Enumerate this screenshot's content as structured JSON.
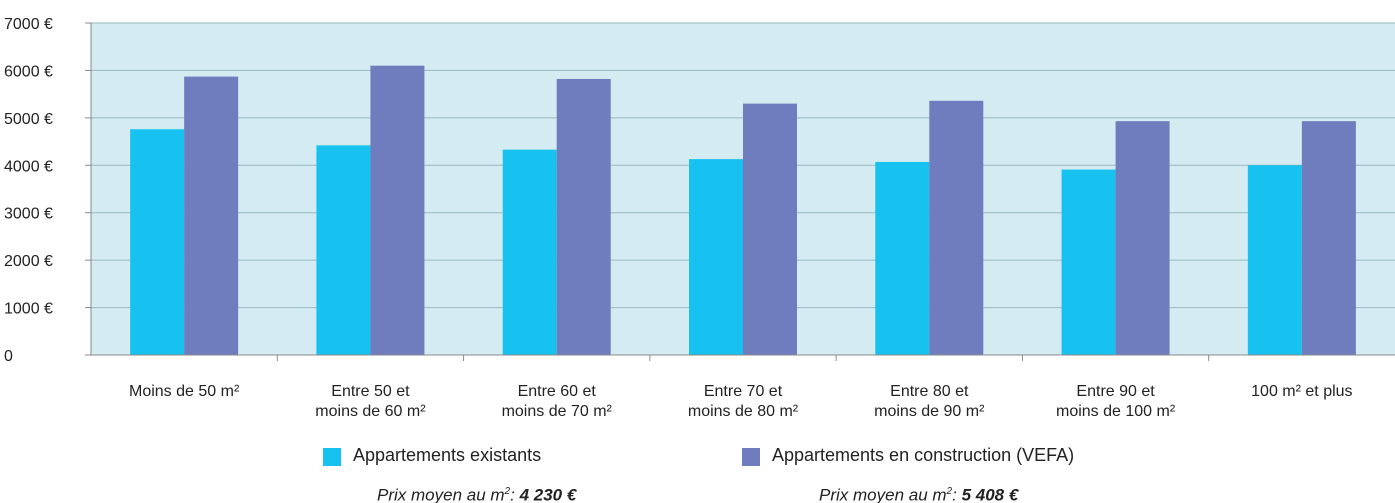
{
  "chart_data": {
    "type": "bar",
    "categories": [
      [
        "Moins de 50 m²"
      ],
      [
        "Entre 50 et",
        "moins de 60 m²"
      ],
      [
        "Entre 60 et",
        "moins de 70 m²"
      ],
      [
        "Entre 70 et",
        "moins de 80 m²"
      ],
      [
        "Entre 80 et",
        "moins de 90 m²"
      ],
      [
        "Entre 90 et",
        "moins de 100 m²"
      ],
      [
        "100 m² et plus"
      ]
    ],
    "series": [
      {
        "name": "Appartements existants",
        "color": "#17c1f0",
        "values": [
          4760,
          4420,
          4330,
          4130,
          4070,
          3910,
          4000
        ]
      },
      {
        "name": "Appartements en construction (VEFA)",
        "color": "#6f7dbf",
        "values": [
          5870,
          6100,
          5820,
          5300,
          5360,
          4930,
          4930
        ]
      }
    ],
    "ylim": [
      0,
      7000
    ],
    "yticks": [
      0,
      1000,
      2000,
      3000,
      4000,
      5000,
      6000,
      7000
    ],
    "ytick_labels": [
      "0",
      "1000 €",
      "2000 €",
      "3000 €",
      "4000 €",
      "5000 €",
      "6000 €",
      "7000 €"
    ],
    "plot_background": "#d3ebf1",
    "grid": true,
    "legend_position": "bottom"
  },
  "averages": {
    "prefix": "Prix moyen au m",
    "sup": "2",
    "colon": ": ",
    "existing_value": "4 230 €",
    "vefa_value": "5 408 €"
  }
}
